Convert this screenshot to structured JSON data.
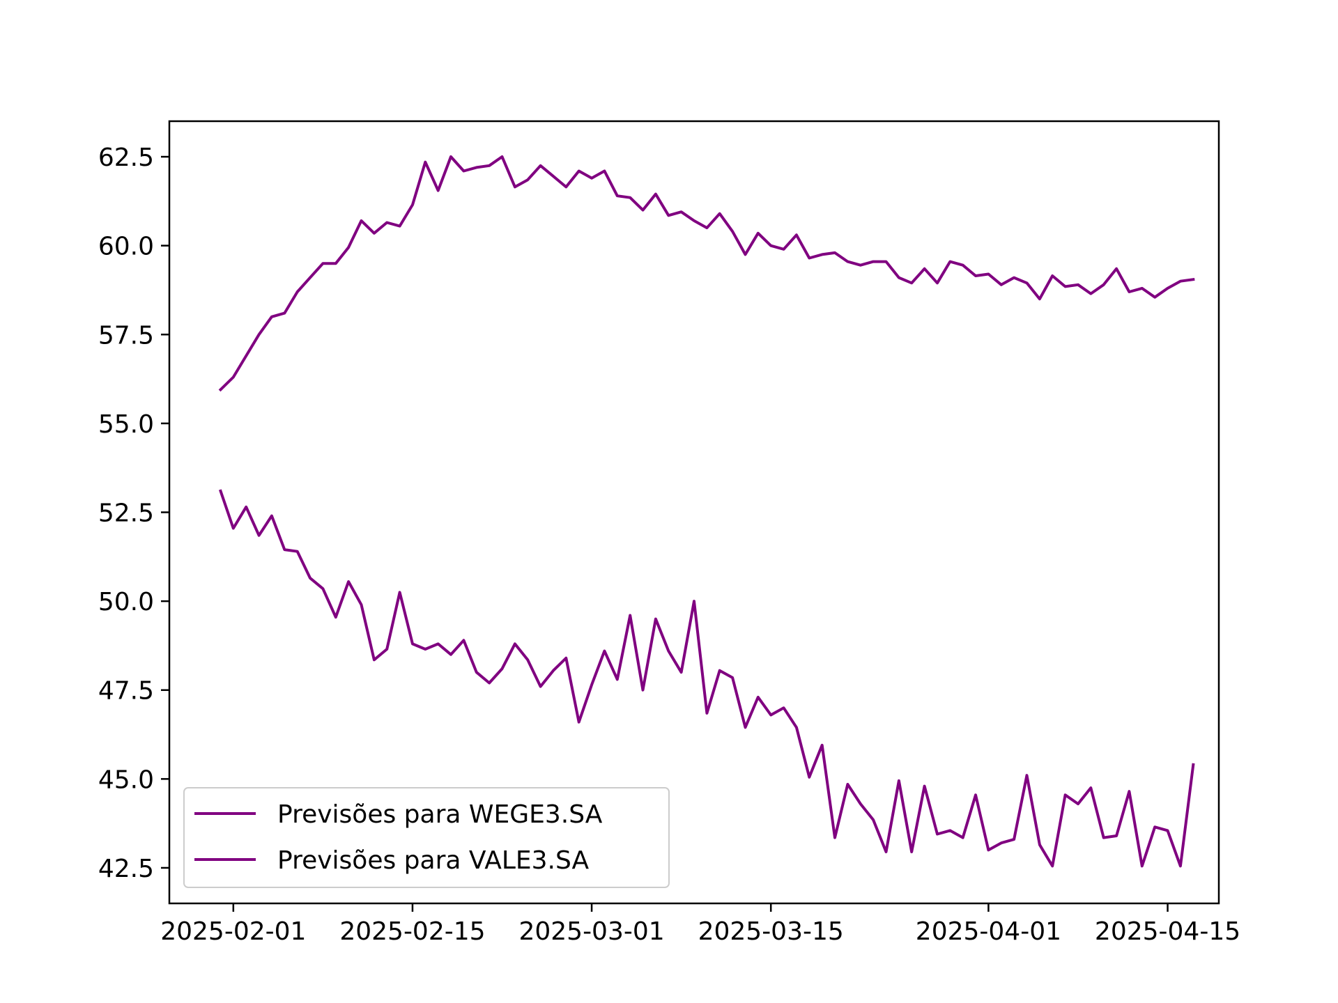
{
  "chart_data": {
    "type": "line",
    "title": "",
    "xlabel": "",
    "ylabel": "",
    "grid": false,
    "legend_position": "lower-left",
    "xlim": [
      "2025-01-27",
      "2025-04-19"
    ],
    "ylim": [
      41.5,
      63.5
    ],
    "x_ticks": [
      "2025-02-01",
      "2025-02-15",
      "2025-03-01",
      "2025-03-15",
      "2025-04-01",
      "2025-04-15"
    ],
    "y_ticks": [
      "42.5",
      "45.0",
      "47.5",
      "50.0",
      "52.5",
      "55.0",
      "57.5",
      "60.0",
      "62.5"
    ],
    "x_start": "2025-01-31",
    "x_end": "2025-04-17",
    "series": [
      {
        "name": "Previsões para WEGE3.SA",
        "color": "#800080",
        "values": [
          55.95,
          56.3,
          56.9,
          57.5,
          58.0,
          58.1,
          58.7,
          59.1,
          59.5,
          59.5,
          59.95,
          60.7,
          60.35,
          60.65,
          60.55,
          61.15,
          62.35,
          61.55,
          62.5,
          62.1,
          62.2,
          62.25,
          62.5,
          61.65,
          61.85,
          62.25,
          61.95,
          61.65,
          62.1,
          61.9,
          62.1,
          61.4,
          61.35,
          61.0,
          61.45,
          60.85,
          60.95,
          60.7,
          60.5,
          60.9,
          60.4,
          59.75,
          60.35,
          60.0,
          59.9,
          60.3,
          59.65,
          59.75,
          59.8,
          59.55,
          59.45,
          59.55,
          59.55,
          59.1,
          58.95,
          59.35,
          58.95,
          59.55,
          59.45,
          59.15,
          59.2,
          58.9,
          59.1,
          58.95,
          58.5,
          59.15,
          58.85,
          58.9,
          58.65,
          58.9,
          59.35,
          58.7,
          58.8,
          58.55,
          58.8,
          59.0,
          59.05
        ]
      },
      {
        "name": "Previsões para VALE3.SA",
        "color": "#800080",
        "values": [
          53.1,
          52.05,
          52.65,
          51.85,
          52.4,
          51.45,
          51.4,
          50.65,
          50.35,
          49.55,
          50.55,
          49.9,
          48.35,
          48.65,
          50.25,
          48.8,
          48.65,
          48.8,
          48.5,
          48.9,
          48.0,
          47.7,
          48.1,
          48.8,
          48.35,
          47.6,
          48.05,
          48.4,
          46.6,
          47.65,
          48.6,
          47.8,
          49.6,
          47.5,
          49.5,
          48.6,
          48.0,
          50.0,
          46.85,
          48.05,
          47.85,
          46.45,
          47.3,
          46.8,
          47.0,
          46.45,
          45.05,
          45.95,
          43.35,
          44.85,
          44.3,
          43.85,
          42.95,
          44.95,
          42.95,
          44.8,
          43.45,
          43.55,
          43.35,
          44.55,
          43.0,
          43.2,
          43.3,
          45.1,
          43.15,
          42.55,
          44.55,
          44.3,
          44.75,
          43.35,
          43.4,
          44.65,
          42.55,
          43.65,
          43.55,
          42.55,
          45.4
        ]
      }
    ]
  }
}
